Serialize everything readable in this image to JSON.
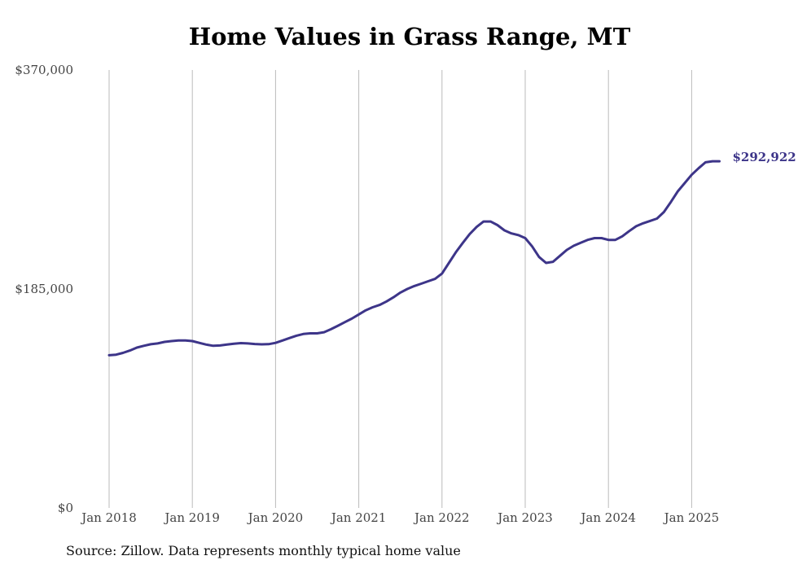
{
  "source_note": "Source: Zillow. Data represents monthly typical home value",
  "colors": {
    "line": "#3d3589",
    "grid": "#bbbbbb"
  },
  "chart_data": {
    "type": "line",
    "title": "Home Values in Grass Range, MT",
    "xlabel": "",
    "ylabel": "",
    "ylim": [
      0,
      370000
    ],
    "y_ticks": [
      {
        "value": 0,
        "label": "$0"
      },
      {
        "value": 185000,
        "label": "$185,000"
      },
      {
        "value": 370000,
        "label": "$370,000"
      }
    ],
    "x_ticks": [
      {
        "value": 2018,
        "label": "Jan 2018"
      },
      {
        "value": 2019,
        "label": "Jan 2019"
      },
      {
        "value": 2020,
        "label": "Jan 2020"
      },
      {
        "value": 2021,
        "label": "Jan 2021"
      },
      {
        "value": 2022,
        "label": "Jan 2022"
      },
      {
        "value": 2023,
        "label": "Jan 2023"
      },
      {
        "value": 2024,
        "label": "Jan 2024"
      },
      {
        "value": 2025,
        "label": "Jan 2025"
      }
    ],
    "grid": "vertical",
    "end_label": "$292,922",
    "series": [
      {
        "points": [
          [
            "2018-01",
            129000
          ],
          [
            "2018-02",
            129500
          ],
          [
            "2018-03",
            131000
          ],
          [
            "2018-04",
            133000
          ],
          [
            "2018-05",
            135500
          ],
          [
            "2018-06",
            137000
          ],
          [
            "2018-07",
            138300
          ],
          [
            "2018-08",
            139000
          ],
          [
            "2018-09",
            140300
          ],
          [
            "2018-10",
            141000
          ],
          [
            "2018-11",
            141500
          ],
          [
            "2018-12",
            141500
          ],
          [
            "2019-01",
            141000
          ],
          [
            "2019-02",
            139500
          ],
          [
            "2019-03",
            138000
          ],
          [
            "2019-04",
            137000
          ],
          [
            "2019-05",
            137300
          ],
          [
            "2019-06",
            138000
          ],
          [
            "2019-07",
            138800
          ],
          [
            "2019-08",
            139300
          ],
          [
            "2019-09",
            139000
          ],
          [
            "2019-10",
            138500
          ],
          [
            "2019-11",
            138200
          ],
          [
            "2019-12",
            138400
          ],
          [
            "2020-01",
            139500
          ],
          [
            "2020-02",
            141500
          ],
          [
            "2020-03",
            143500
          ],
          [
            "2020-04",
            145500
          ],
          [
            "2020-05",
            147000
          ],
          [
            "2020-06",
            147500
          ],
          [
            "2020-07",
            147500
          ],
          [
            "2020-08",
            148500
          ],
          [
            "2020-09",
            151000
          ],
          [
            "2020-10",
            154000
          ],
          [
            "2020-11",
            157000
          ],
          [
            "2020-12",
            160000
          ],
          [
            "2021-01",
            163500
          ],
          [
            "2021-02",
            167000
          ],
          [
            "2021-03",
            169500
          ],
          [
            "2021-04",
            171500
          ],
          [
            "2021-05",
            174500
          ],
          [
            "2021-06",
            178000
          ],
          [
            "2021-07",
            182000
          ],
          [
            "2021-08",
            185000
          ],
          [
            "2021-09",
            187500
          ],
          [
            "2021-10",
            189500
          ],
          [
            "2021-11",
            191500
          ],
          [
            "2021-12",
            193500
          ],
          [
            "2022-01",
            198000
          ],
          [
            "2022-02",
            207000
          ],
          [
            "2022-03",
            216000
          ],
          [
            "2022-04",
            224000
          ],
          [
            "2022-05",
            231500
          ],
          [
            "2022-06",
            237500
          ],
          [
            "2022-07",
            242000
          ],
          [
            "2022-08",
            242000
          ],
          [
            "2022-09",
            239000
          ],
          [
            "2022-10",
            234500
          ],
          [
            "2022-11",
            232000
          ],
          [
            "2022-12",
            230500
          ],
          [
            "2023-01",
            228000
          ],
          [
            "2023-02",
            221000
          ],
          [
            "2023-03",
            212000
          ],
          [
            "2023-04",
            207000
          ],
          [
            "2023-05",
            208000
          ],
          [
            "2023-06",
            213000
          ],
          [
            "2023-07",
            218000
          ],
          [
            "2023-08",
            221500
          ],
          [
            "2023-09",
            224000
          ],
          [
            "2023-10",
            226500
          ],
          [
            "2023-11",
            228000
          ],
          [
            "2023-12",
            228000
          ],
          [
            "2024-01",
            226500
          ],
          [
            "2024-02",
            226500
          ],
          [
            "2024-03",
            229500
          ],
          [
            "2024-04",
            234000
          ],
          [
            "2024-05",
            238000
          ],
          [
            "2024-06",
            240500
          ],
          [
            "2024-07",
            242500
          ],
          [
            "2024-08",
            244500
          ],
          [
            "2024-09",
            250000
          ],
          [
            "2024-10",
            258500
          ],
          [
            "2024-11",
            267500
          ],
          [
            "2024-12",
            274500
          ],
          [
            "2025-01",
            281500
          ],
          [
            "2025-02",
            287000
          ],
          [
            "2025-03",
            292000
          ],
          [
            "2025-04",
            292922
          ],
          [
            "2025-05",
            292922
          ]
        ]
      }
    ]
  }
}
